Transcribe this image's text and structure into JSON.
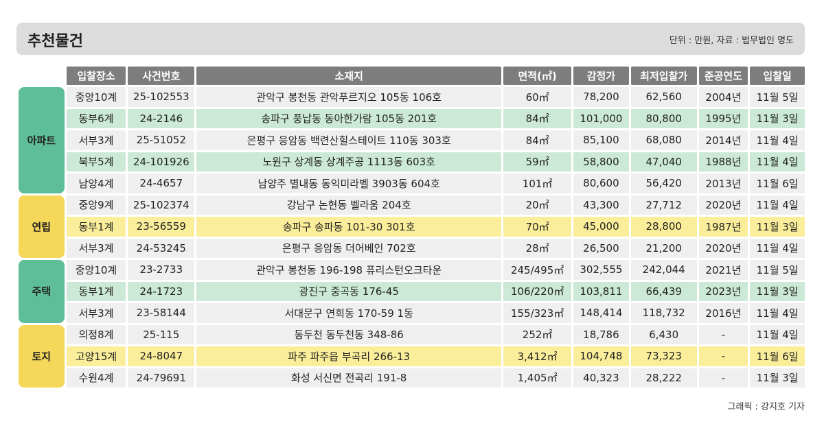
{
  "header": {
    "title": "추천물건",
    "unit": "단위 : 만원, 자료 : 법무법인 명도"
  },
  "columns": [
    "입찰장소",
    "사건번호",
    "소재지",
    "면적(㎡)",
    "감정가",
    "최저입찰가",
    "준공연도",
    "입찰일"
  ],
  "groups": [
    {
      "label": "아파트",
      "color": "#5fbe9a",
      "rows": [
        [
          "중앙10계",
          "25-102553",
          "관악구 봉천동 관악푸르지오 105동 106호",
          "60㎡",
          "78,200",
          "62,560",
          "2004년",
          "11월 5일"
        ],
        [
          "동부6계",
          "24-2146",
          "송파구 풍납동 동아한가람 105동 201호",
          "84㎡",
          "101,000",
          "80,800",
          "1995년",
          "11월 3일"
        ],
        [
          "서부3계",
          "25-51052",
          "은평구 응암동 백련산힐스테이트 110동 303호",
          "84㎡",
          "85,100",
          "68,080",
          "2014년",
          "11월 4일"
        ],
        [
          "북부5계",
          "24-101926",
          "노원구 상계동 상계주공 1113동 603호",
          "59㎡",
          "58,800",
          "47,040",
          "1988년",
          "11월 4일"
        ],
        [
          "남양4계",
          "24-4657",
          "남양주 별내동 동익미라벨 3903동 604호",
          "101㎡",
          "80,600",
          "56,420",
          "2013년",
          "11월 6일"
        ]
      ]
    },
    {
      "label": "연립",
      "color": "#f5d75a",
      "rows": [
        [
          "중앙9계",
          "25-102374",
          "강남구 논현동 벨라움 204호",
          "20㎡",
          "43,300",
          "27,712",
          "2020년",
          "11월 4일"
        ],
        [
          "동부1계",
          "23-56559",
          "송파구 송파동 101-30 301호",
          "70㎡",
          "45,000",
          "28,800",
          "1987년",
          "11월 3일"
        ],
        [
          "서부3계",
          "24-53245",
          "은평구 응암동 더어베인 702호",
          "28㎡",
          "26,500",
          "21,200",
          "2020년",
          "11월 4일"
        ]
      ]
    },
    {
      "label": "주택",
      "color": "#5fbe9a",
      "rows": [
        [
          "중앙10계",
          "23-2733",
          "관악구 봉천동 196-198 퓨리스턴오크타운",
          "245/495㎡",
          "302,555",
          "242,044",
          "2021년",
          "11월 5일"
        ],
        [
          "동부1계",
          "24-1723",
          "광진구 중곡동 176-45",
          "106/220㎡",
          "103,811",
          "66,439",
          "2023년",
          "11월 3일"
        ],
        [
          "서부3계",
          "23-58144",
          "서대문구 연희동 170-59 1동",
          "155/323㎡",
          "148,414",
          "118,732",
          "2016년",
          "11월 4일"
        ]
      ]
    },
    {
      "label": "토지",
      "color": "#f5d75a",
      "rows": [
        [
          "의정8계",
          "25-115",
          "동두천 동두천동 348-86",
          "252㎡",
          "18,786",
          "6,430",
          "-",
          "11월 4일"
        ],
        [
          "고양15계",
          "24-8047",
          "파주 파주읍 부곡리 266-13",
          "3,412㎡",
          "104,748",
          "73,323",
          "-",
          "11월 6일"
        ],
        [
          "수원4계",
          "24-79691",
          "화성 서신면 전곡리 191-8",
          "1,405㎡",
          "40,323",
          "28,222",
          "-",
          "11월 3일"
        ]
      ]
    }
  ],
  "credit": "그래픽 : 강지호 기자"
}
